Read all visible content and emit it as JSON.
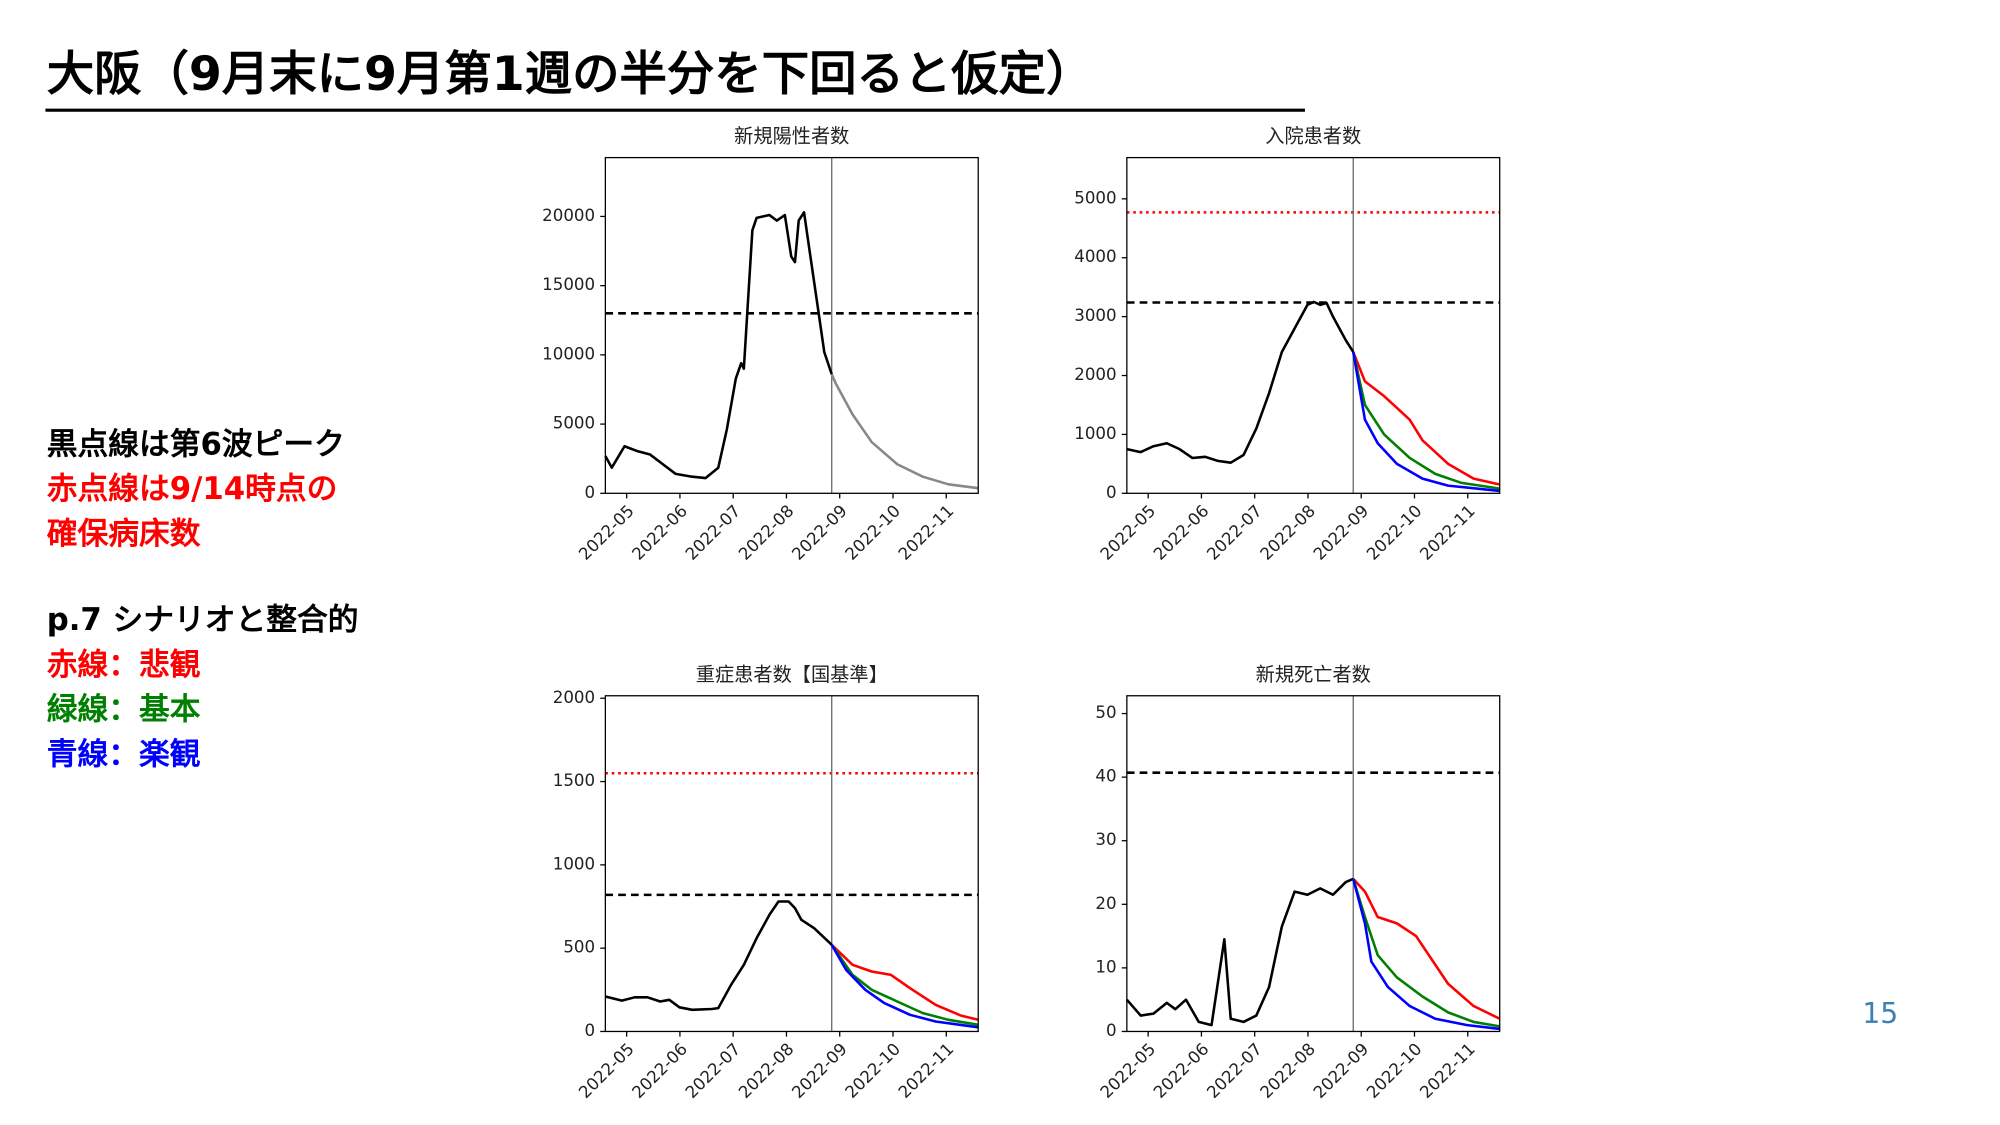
{
  "title": "大阪（9月末に9月第1週の半分を下回ると仮定）",
  "page_number": "15",
  "notes": [
    [
      {
        "text": "黒点線は第6波ピーク",
        "color": "#000000"
      },
      {
        "text": "赤点線は9/14時点の",
        "color": "#ff0000"
      },
      {
        "text": "確保病床数",
        "color": "#ff0000"
      }
    ],
    [
      {
        "text": "p.7 シナリオと整合的",
        "color": "#000000"
      },
      {
        "text": "赤線：悲観",
        "color": "#ff0000"
      },
      {
        "text": "緑線：基本",
        "color": "#008000"
      },
      {
        "text": "青線：楽観",
        "color": "#0000ff"
      }
    ]
  ],
  "chart_data": [
    {
      "type": "line",
      "title": "新規陽性者数",
      "xlim": [
        4.6,
        11.6
      ],
      "ylim": [
        0,
        24250
      ],
      "xticks": [
        {
          "value": 5,
          "label": "2022-05"
        },
        {
          "value": 6,
          "label": "2022-06"
        },
        {
          "value": 7,
          "label": "2022-07"
        },
        {
          "value": 8,
          "label": "2022-08"
        },
        {
          "value": 9,
          "label": "2022-09"
        },
        {
          "value": 10,
          "label": "2022-10"
        },
        {
          "value": 11,
          "label": "2022-11"
        }
      ],
      "yticks": [
        0,
        5000,
        10000,
        15000,
        20000
      ],
      "hlines": [
        {
          "value": 13000,
          "color": "#000000",
          "style": "dashed"
        }
      ],
      "vlines": [
        8.85
      ],
      "series": [
        {
          "color": "#000000",
          "x": [
            4.6,
            4.72,
            4.96,
            5.2,
            5.44,
            5.68,
            5.92,
            6.23,
            6.48,
            6.72,
            6.88,
            7.05,
            7.15,
            7.2,
            7.27,
            7.36,
            7.44,
            7.68,
            7.82,
            7.97,
            8.09,
            8.16,
            8.23,
            8.33,
            8.45,
            8.59,
            8.71,
            8.85
          ],
          "values": [
            2700,
            1850,
            3400,
            3050,
            2800,
            2100,
            1400,
            1200,
            1100,
            1850,
            4600,
            8300,
            9400,
            9000,
            13400,
            19000,
            19900,
            20100,
            19700,
            20100,
            17100,
            16700,
            19700,
            20300,
            17100,
            13400,
            10200,
            8600
          ]
        },
        {
          "color": "#888888",
          "x": [
            8.85,
            8.93,
            9.24,
            9.6,
            10.08,
            10.56,
            11.04,
            11.6
          ],
          "values": [
            8600,
            7900,
            5700,
            3700,
            2100,
            1200,
            650,
            370
          ]
        }
      ]
    },
    {
      "type": "line",
      "title": "入院患者数",
      "xlim": [
        4.6,
        11.6
      ],
      "ylim": [
        0,
        5700
      ],
      "xticks": [
        {
          "value": 5,
          "label": "2022-05"
        },
        {
          "value": 6,
          "label": "2022-06"
        },
        {
          "value": 7,
          "label": "2022-07"
        },
        {
          "value": 8,
          "label": "2022-08"
        },
        {
          "value": 9,
          "label": "2022-09"
        },
        {
          "value": 10,
          "label": "2022-10"
        },
        {
          "value": 11,
          "label": "2022-11"
        }
      ],
      "yticks": [
        0,
        1000,
        2000,
        3000,
        4000,
        5000
      ],
      "hlines": [
        {
          "value": 4770,
          "color": "#ff0000",
          "style": "dotted"
        },
        {
          "value": 3240,
          "color": "#000000",
          "style": "dashed"
        }
      ],
      "vlines": [
        8.85
      ],
      "series": [
        {
          "color": "#000000",
          "x": [
            4.6,
            4.86,
            5.1,
            5.35,
            5.59,
            5.83,
            6.07,
            6.31,
            6.55,
            6.79,
            7.03,
            7.27,
            7.51,
            7.75,
            7.99,
            8.11,
            8.23,
            8.35,
            8.47,
            8.71,
            8.85
          ],
          "values": [
            750,
            700,
            800,
            850,
            750,
            600,
            620,
            550,
            520,
            650,
            1100,
            1700,
            2400,
            2800,
            3200,
            3250,
            3200,
            3230,
            3000,
            2600,
            2400
          ]
        },
        {
          "color": "#ff0000",
          "x": [
            8.85,
            9.07,
            9.43,
            9.91,
            10.15,
            10.63,
            11.11,
            11.6
          ],
          "values": [
            2400,
            1900,
            1650,
            1250,
            900,
            500,
            250,
            150
          ]
        },
        {
          "color": "#008000",
          "x": [
            8.85,
            9.07,
            9.43,
            9.91,
            10.39,
            10.87,
            11.6
          ],
          "values": [
            2400,
            1500,
            1000,
            600,
            330,
            180,
            80
          ]
        },
        {
          "color": "#0000ff",
          "x": [
            8.85,
            9.07,
            9.31,
            9.67,
            10.15,
            10.63,
            11.6
          ],
          "values": [
            2400,
            1250,
            850,
            500,
            250,
            130,
            40
          ]
        }
      ]
    },
    {
      "type": "line",
      "title": "重症患者数【国基準】",
      "xlim": [
        4.6,
        11.6
      ],
      "ylim": [
        0,
        2015
      ],
      "xticks": [
        {
          "value": 5,
          "label": "2022-05"
        },
        {
          "value": 6,
          "label": "2022-06"
        },
        {
          "value": 7,
          "label": "2022-07"
        },
        {
          "value": 8,
          "label": "2022-08"
        },
        {
          "value": 9,
          "label": "2022-09"
        },
        {
          "value": 10,
          "label": "2022-10"
        },
        {
          "value": 11,
          "label": "2022-11"
        }
      ],
      "yticks": [
        0,
        500,
        1000,
        1500,
        2000
      ],
      "hlines": [
        {
          "value": 1550,
          "color": "#ff0000",
          "style": "dotted"
        },
        {
          "value": 820,
          "color": "#000000",
          "style": "dashed"
        }
      ],
      "vlines": [
        8.85
      ],
      "series": [
        {
          "color": "#000000",
          "x": [
            4.6,
            4.91,
            5.15,
            5.39,
            5.63,
            5.8,
            5.99,
            6.23,
            6.6,
            6.72,
            6.96,
            7.2,
            7.44,
            7.68,
            7.85,
            8.04,
            8.16,
            8.28,
            8.52,
            8.85
          ],
          "values": [
            210,
            185,
            205,
            205,
            180,
            190,
            145,
            130,
            135,
            140,
            280,
            400,
            560,
            700,
            780,
            780,
            740,
            670,
            620,
            520
          ]
        },
        {
          "color": "#ff0000",
          "x": [
            8.85,
            9.24,
            9.6,
            9.96,
            10.32,
            10.8,
            11.28,
            11.6
          ],
          "values": [
            520,
            400,
            360,
            340,
            260,
            160,
            95,
            70
          ]
        },
        {
          "color": "#008000",
          "x": [
            8.85,
            9.24,
            9.6,
            10.08,
            10.56,
            11.04,
            11.6
          ],
          "values": [
            520,
            340,
            250,
            180,
            110,
            70,
            40
          ]
        },
        {
          "color": "#0000ff",
          "x": [
            8.85,
            9.12,
            9.48,
            9.84,
            10.32,
            10.8,
            11.6
          ],
          "values": [
            520,
            370,
            250,
            170,
            100,
            60,
            25
          ]
        }
      ]
    },
    {
      "type": "line",
      "title": "新規死亡者数",
      "xlim": [
        4.6,
        11.6
      ],
      "ylim": [
        0,
        52.8
      ],
      "xticks": [
        {
          "value": 5,
          "label": "2022-05"
        },
        {
          "value": 6,
          "label": "2022-06"
        },
        {
          "value": 7,
          "label": "2022-07"
        },
        {
          "value": 8,
          "label": "2022-08"
        },
        {
          "value": 9,
          "label": "2022-09"
        },
        {
          "value": 10,
          "label": "2022-10"
        },
        {
          "value": 11,
          "label": "2022-11"
        }
      ],
      "yticks": [
        0,
        10,
        20,
        30,
        40,
        50
      ],
      "hlines": [
        {
          "value": 40.7,
          "color": "#000000",
          "style": "dashed"
        }
      ],
      "vlines": [
        8.85
      ],
      "series": [
        {
          "color": "#000000",
          "x": [
            4.6,
            4.86,
            5.1,
            5.35,
            5.51,
            5.71,
            5.95,
            6.19,
            6.43,
            6.55,
            6.79,
            7.03,
            7.27,
            7.51,
            7.75,
            7.99,
            8.23,
            8.47,
            8.71,
            8.85
          ],
          "values": [
            5,
            2.5,
            2.8,
            4.5,
            3.5,
            5,
            1.5,
            1,
            14.5,
            2,
            1.5,
            2.5,
            7,
            16.5,
            22,
            21.5,
            22.5,
            21.5,
            23.5,
            24
          ]
        },
        {
          "color": "#ff0000",
          "x": [
            8.85,
            9.07,
            9.31,
            9.67,
            10.03,
            10.27,
            10.63,
            11.11,
            11.6
          ],
          "values": [
            24,
            22,
            18,
            17,
            15,
            12,
            7.5,
            4,
            2
          ]
        },
        {
          "color": "#008000",
          "x": [
            8.85,
            9.07,
            9.31,
            9.67,
            10.15,
            10.63,
            11.11,
            11.6
          ],
          "values": [
            24,
            18,
            12,
            8.5,
            5.5,
            3,
            1.5,
            0.8
          ]
        },
        {
          "color": "#0000ff",
          "x": [
            8.85,
            9.07,
            9.19,
            9.5,
            9.91,
            10.39,
            10.99,
            11.6
          ],
          "values": [
            24,
            17,
            11,
            7,
            4,
            2,
            1,
            0.4
          ]
        }
      ]
    }
  ]
}
